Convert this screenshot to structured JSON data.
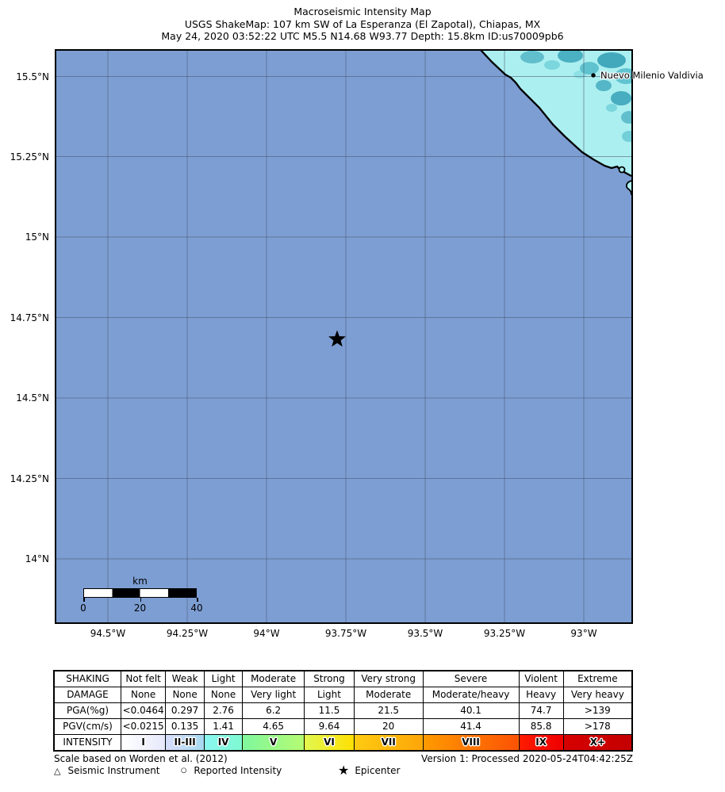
{
  "title": {
    "line1": "Macroseismic Intensity Map",
    "line2": "USGS ShakeMap: 107 km SW of La Esperanza (El Zapotal), Chiapas, MX",
    "line3": "May 24, 2020 03:52:22 UTC M5.5 N14.68 W93.77 Depth: 15.8km ID:us70009pb6"
  },
  "map": {
    "city_label": "Nuevo Milenio Valdivia",
    "scale_bar": {
      "unit": "km",
      "tick_labels": [
        "0",
        "20",
        "40"
      ]
    },
    "colors": {
      "ocean": "#7d9ed3",
      "land": "#aceff0",
      "coast": "#000000",
      "grid": "#46536e"
    }
  },
  "axes": {
    "lat_ticks": [
      "15.5°N",
      "15.25°N",
      "15°N",
      "14.75°N",
      "14.5°N",
      "14.25°N",
      "14°N"
    ],
    "lon_ticks": [
      "94.5°W",
      "94.25°W",
      "94°W",
      "93.75°W",
      "93.5°W",
      "93.25°W",
      "93°W"
    ]
  },
  "table": {
    "rows": [
      {
        "label": "SHAKING",
        "cells": [
          "Not felt",
          "Weak",
          "Light",
          "Moderate",
          "Strong",
          "Very strong",
          "Severe",
          "Violent",
          "Extreme"
        ]
      },
      {
        "label": "DAMAGE",
        "cells": [
          "None",
          "None",
          "None",
          "Very light",
          "Light",
          "Moderate",
          "Moderate/heavy",
          "Heavy",
          "Very heavy"
        ]
      },
      {
        "label": "PGA(%g)",
        "cells": [
          "<0.0464",
          "0.297",
          "2.76",
          "6.2",
          "11.5",
          "21.5",
          "40.1",
          "74.7",
          ">139"
        ]
      },
      {
        "label": "PGV(cm/s)",
        "cells": [
          "<0.0215",
          "0.135",
          "1.41",
          "4.65",
          "9.64",
          "20",
          "41.4",
          "85.8",
          ">178"
        ]
      },
      {
        "label": "INTENSITY",
        "cells": [
          "I",
          "II-III",
          "IV",
          "V",
          "VI",
          "VII",
          "VIII",
          "IX",
          "X+"
        ]
      }
    ],
    "intensity_colors": [
      [
        "#ffffff",
        "#e6e8fb"
      ],
      [
        "#d8dcfb",
        "#a6d9f1"
      ],
      [
        "#8bf7f1",
        "#7ef9d0"
      ],
      [
        "#7ff79d",
        "#b6fb72"
      ],
      [
        "#e2f84f",
        "#ffe003"
      ],
      [
        "#fecb11",
        "#fda608"
      ],
      [
        "#fe9b00",
        "#fd5205"
      ],
      [
        "#fd1c00",
        "#ef0000"
      ],
      [
        "#d60000",
        "#c40000"
      ]
    ]
  },
  "footer": {
    "scale_note": "Scale based on Worden et al. (2012)",
    "version": "Version 1: Processed 2020-05-24T04:42:25Z",
    "legend": [
      {
        "symbol": "△",
        "label": "Seismic Instrument"
      },
      {
        "symbol": "○",
        "label": "Reported Intensity"
      },
      {
        "symbol": "★",
        "label": "Epicenter"
      }
    ]
  }
}
